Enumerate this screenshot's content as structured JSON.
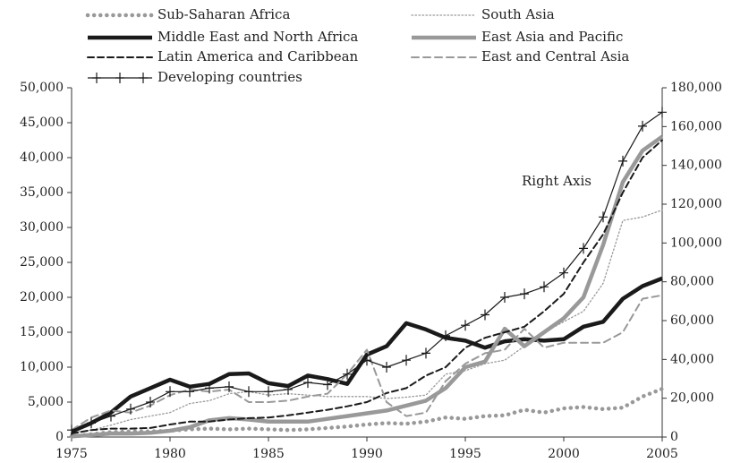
{
  "chart_data": {
    "type": "line",
    "annotation": "Right Axis",
    "x": [
      1975,
      1976,
      1977,
      1978,
      1979,
      1980,
      1981,
      1982,
      1983,
      1984,
      1985,
      1986,
      1987,
      1988,
      1989,
      1990,
      1991,
      1992,
      1993,
      1994,
      1995,
      1996,
      1997,
      1998,
      1999,
      2000,
      2001,
      2002,
      2003,
      2004,
      2005
    ],
    "xlim": [
      1975,
      2005
    ],
    "xticks": [
      1975,
      1980,
      1985,
      1990,
      1995,
      2000,
      2005
    ],
    "ylim": [
      0,
      50000
    ],
    "yticks": [
      0,
      {
        "value": 5000,
        "label": "5,000"
      },
      {
        "value": 10000,
        "label": "10,000"
      },
      {
        "value": 15000,
        "label": "15,000"
      },
      {
        "value": 20000,
        "label": "20,000"
      },
      {
        "value": 25000,
        "label": "25,000"
      },
      {
        "value": 30000,
        "label": "30,000"
      },
      {
        "value": 35000,
        "label": "35,000"
      },
      {
        "value": 40000,
        "label": "40,000"
      },
      {
        "value": 45000,
        "label": "45,000"
      },
      {
        "value": 50000,
        "label": "50,000"
      }
    ],
    "y2lim": [
      0,
      180000
    ],
    "y2ticks": [
      0,
      {
        "value": 20000,
        "label": "20,000"
      },
      {
        "value": 40000,
        "label": "40,000"
      },
      {
        "value": 60000,
        "label": "60,000"
      },
      {
        "value": 80000,
        "label": "80,000"
      },
      {
        "value": 100000,
        "label": "100,000"
      },
      {
        "value": 120000,
        "label": "120,000"
      },
      {
        "value": 140000,
        "label": "140,000"
      },
      {
        "value": 160000,
        "label": "160,000"
      },
      {
        "value": 180000,
        "label": "180,000"
      }
    ],
    "series": [
      {
        "name": "Sub-Saharan Africa",
        "color": "#999999",
        "width": 4.5,
        "dash": "0.1,7",
        "values": [
          100,
          400,
          700,
          800,
          800,
          900,
          1100,
          1200,
          1100,
          1200,
          1100,
          1000,
          1100,
          1300,
          1500,
          1800,
          2000,
          1900,
          2200,
          2800,
          2600,
          3000,
          3100,
          3900,
          3500,
          4100,
          4300,
          4000,
          4200,
          5800,
          6900
        ]
      },
      {
        "name": "South Asia",
        "color": "#999999",
        "width": 1.3,
        "dash": "1.5,2.5",
        "values": [
          600,
          1000,
          1700,
          2500,
          3000,
          3500,
          4800,
          5200,
          6200,
          6500,
          6000,
          6200,
          6000,
          5800,
          5800,
          5800,
          5500,
          5700,
          6000,
          9000,
          9500,
          10500,
          11000,
          13000,
          15000,
          16500,
          18000,
          22000,
          31000,
          31500,
          32500
        ]
      },
      {
        "name": "Middle East and North Africa",
        "color": "#1a1a1a",
        "width": 4.5,
        "dash": "none",
        "values": [
          800,
          2000,
          3500,
          5800,
          7000,
          8200,
          7200,
          7600,
          9000,
          9100,
          7700,
          7300,
          8800,
          8300,
          7600,
          11800,
          13000,
          16300,
          15400,
          14200,
          13800,
          12800,
          13700,
          14000,
          13800,
          14000,
          15800,
          16500,
          19800,
          21600,
          22700
        ]
      },
      {
        "name": "East Asia and Pacific",
        "color": "#999999",
        "width": 4.5,
        "dash": "none",
        "values": [
          100,
          300,
          500,
          500,
          600,
          900,
          1400,
          2400,
          2700,
          2500,
          2200,
          2200,
          2200,
          2600,
          3000,
          3400,
          3800,
          4500,
          5200,
          7000,
          10000,
          10800,
          15500,
          13000,
          15000,
          17000,
          20000,
          27500,
          36500,
          41000,
          43000
        ]
      },
      {
        "name": "Latin America and Caribbean",
        "color": "#1a1a1a",
        "width": 2,
        "dash": "7,4",
        "values": [
          500,
          1000,
          1200,
          1200,
          1300,
          1800,
          2200,
          2200,
          2500,
          2700,
          2800,
          3100,
          3500,
          3900,
          4400,
          5000,
          6300,
          7000,
          8800,
          10000,
          12800,
          14200,
          15000,
          15800,
          18000,
          20500,
          25000,
          29000,
          35000,
          40000,
          42500
        ]
      },
      {
        "name": "East and Central Asia",
        "color": "#999999",
        "width": 2,
        "dash": "8,5",
        "values": [
          1000,
          2800,
          3800,
          3500,
          4500,
          6000,
          6800,
          6500,
          6800,
          5000,
          5000,
          5200,
          5800,
          6200,
          9000,
          12500,
          5000,
          3000,
          3500,
          8000,
          10500,
          12000,
          12500,
          15500,
          12800,
          13500,
          13500,
          13500,
          15000,
          19800,
          20300
        ]
      },
      {
        "name": "Developing countries",
        "color": "#1a1a1a",
        "width": 1.2,
        "dash": "none",
        "axis": "y2",
        "marker": "plus",
        "values": [
          3600,
          7200,
          10800,
          14400,
          18000,
          23400,
          23400,
          25200,
          25900,
          23400,
          23400,
          24500,
          28100,
          27000,
          32400,
          39600,
          36000,
          39600,
          43200,
          52200,
          57600,
          63000,
          72000,
          73800,
          77400,
          84600,
          97200,
          113400,
          142200,
          160200,
          167400
        ]
      }
    ]
  }
}
